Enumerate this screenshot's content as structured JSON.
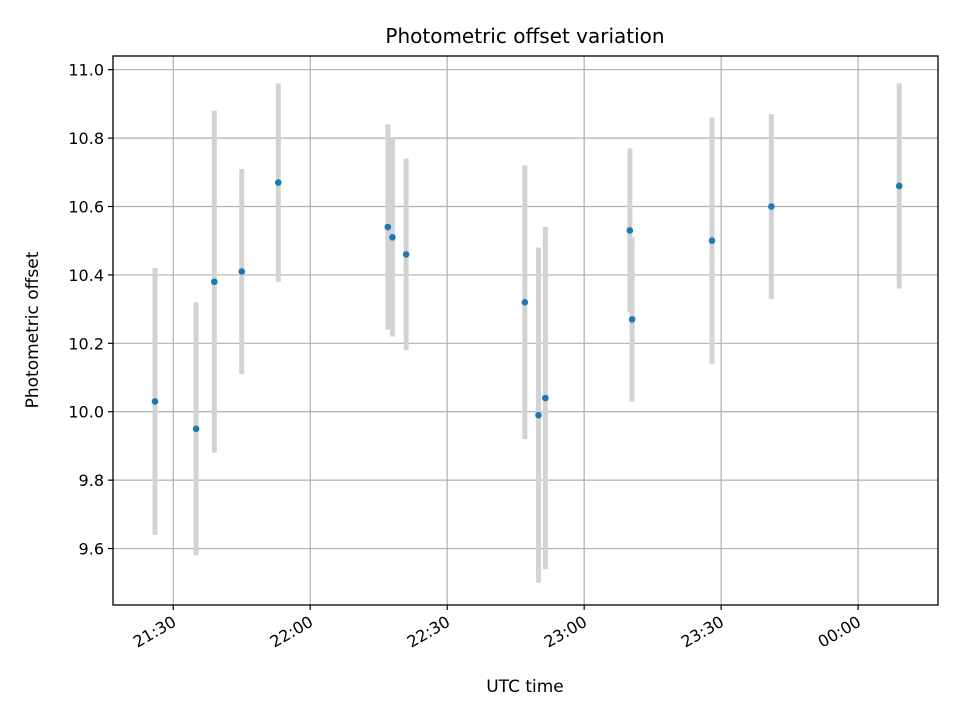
{
  "chart_data": {
    "type": "scatter",
    "title": "Photometric offset variation",
    "xlabel": "UTC time",
    "ylabel": "Photometric offset",
    "x_ticks": [
      "21:30",
      "22:00",
      "22:30",
      "23:00",
      "23:30",
      "00:00"
    ],
    "x_tick_minutes": [
      1290,
      1320,
      1350,
      1380,
      1410,
      1440
    ],
    "xlim": [
      1276.8,
      1457.5
    ],
    "ylim": [
      9.435,
      11.04
    ],
    "y_ticks": [
      "9.6",
      "9.8",
      "10.0",
      "10.2",
      "10.4",
      "10.6",
      "10.8",
      "11.0"
    ],
    "y_tick_values": [
      9.6,
      9.8,
      10.0,
      10.2,
      10.4,
      10.6,
      10.8,
      11.0
    ],
    "grid": true,
    "point_color": "#1f77b4",
    "errorbar_color": "#d3d3d3",
    "series": [
      {
        "points": [
          {
            "x": "21:26",
            "y": 10.03,
            "err": 0.39
          },
          {
            "x": "21:35",
            "y": 9.95,
            "err": 0.37
          },
          {
            "x": "21:39",
            "y": 10.38,
            "err": 0.5
          },
          {
            "x": "21:45",
            "y": 10.41,
            "err": 0.3
          },
          {
            "x": "21:53",
            "y": 10.67,
            "err": 0.29
          },
          {
            "x": "22:17",
            "y": 10.54,
            "err": 0.3
          },
          {
            "x": "22:18",
            "y": 10.51,
            "err": 0.29
          },
          {
            "x": "22:21",
            "y": 10.46,
            "err": 0.28
          },
          {
            "x": "22:47",
            "y": 10.32,
            "err": 0.4
          },
          {
            "x": "22:50",
            "y": 9.99,
            "err": 0.49
          },
          {
            "x": "22:50",
            "y": 10.04,
            "err": 0.5
          },
          {
            "x": "23:10",
            "y": 10.53,
            "err": 0.24
          },
          {
            "x": "23:10",
            "y": 10.27,
            "err": 0.24
          },
          {
            "x": "23:28",
            "y": 10.5,
            "err": 0.36
          },
          {
            "x": "23:41",
            "y": 10.6,
            "err": 0.27
          },
          {
            "x": "00:09",
            "y": 10.66,
            "err": 0.3
          }
        ]
      }
    ]
  }
}
